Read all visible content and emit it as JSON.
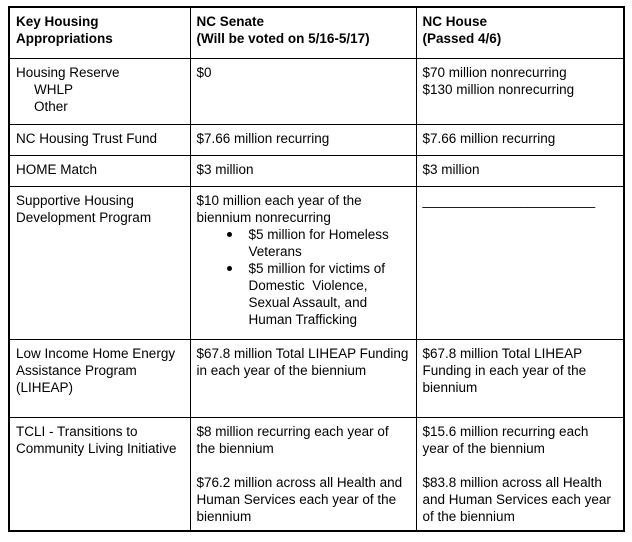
{
  "table": {
    "headers": {
      "col1": [
        "Key Housing",
        "Appropriations"
      ],
      "col2": [
        "NC Senate",
        "(Will be voted on 5/16-5/17)"
      ],
      "col3": [
        "NC House",
        "(Passed 4/6)"
      ]
    },
    "rows": [
      {
        "program": "Housing Reserve",
        "program_subitems": [
          "WHLP",
          "Other"
        ],
        "senate": "$0",
        "house_lines": [
          "$70 million nonrecurring",
          "$130 million nonrecurring"
        ]
      },
      {
        "program": "NC Housing Trust Fund",
        "senate": "$7.66 million recurring",
        "house": "$7.66 million recurring"
      },
      {
        "program": "HOME Match",
        "senate": "$3 million",
        "house": "$3 million"
      },
      {
        "program": "Supportive Housing Development Program",
        "senate_intro": "$10 million each year of the biennium nonrecurring",
        "senate_bullets": [
          "$5 million for Homeless Veterans",
          "$5 million for victims of Domestic  Violence, Sexual Assault, and Human Trafficking"
        ],
        "house_blank": "_______________________"
      },
      {
        "program": "Low Income Home Energy Assistance Program (LIHEAP)",
        "senate": "$67.8 million Total LIHEAP Funding in each year of the biennium",
        "house": "$67.8 million Total LIHEAP Funding in each year of the biennium"
      },
      {
        "program": "TCLI - Transitions to Community Living Initiative",
        "senate_paragraphs": [
          "$8 million recurring each year of the biennium",
          "$76.2 million across all Health and Human Services each year of the biennium"
        ],
        "house_paragraphs": [
          "$15.6 million recurring each year of the biennium",
          "$83.8 million across all Health and Human Services each year of the biennium"
        ]
      }
    ]
  }
}
